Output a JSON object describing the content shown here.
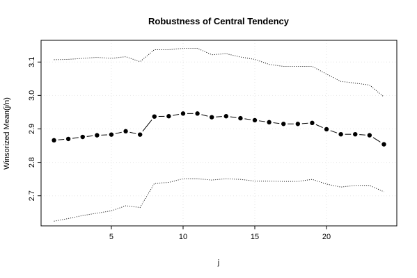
{
  "chart_data": {
    "type": "line",
    "title": "Robustness of Central Tendency",
    "xlabel": "j",
    "ylabel": "Winsorized Mean(j/n)",
    "xlim": [
      0.1,
      24.9
    ],
    "ylim": [
      2.61,
      3.165
    ],
    "x_ticks": [
      5,
      10,
      15,
      20
    ],
    "y_ticks": [
      2.7,
      2.8,
      2.9,
      3.0,
      3.1
    ],
    "x_tick_labels": [
      "5",
      "10",
      "15",
      "20"
    ],
    "y_tick_labels": [
      "2.7",
      "2.8",
      "2.9",
      "3.0",
      "3.1"
    ],
    "grid": true,
    "x": [
      1,
      2,
      3,
      4,
      5,
      6,
      7,
      8,
      9,
      10,
      11,
      12,
      13,
      14,
      15,
      16,
      17,
      18,
      19,
      20,
      21,
      22,
      23,
      24
    ],
    "series": [
      {
        "role": "mean",
        "style": "points-dashed",
        "color": "#000000",
        "values": [
          2.866,
          2.87,
          2.876,
          2.881,
          2.883,
          2.893,
          2.883,
          2.937,
          2.938,
          2.946,
          2.946,
          2.935,
          2.938,
          2.932,
          2.926,
          2.92,
          2.915,
          2.915,
          2.918,
          2.899,
          2.884,
          2.884,
          2.881,
          2.854
        ]
      },
      {
        "role": "upper",
        "style": "dotted",
        "color": "#000000",
        "values": [
          3.107,
          3.108,
          3.111,
          3.114,
          3.111,
          3.116,
          3.101,
          3.137,
          3.137,
          3.141,
          3.141,
          3.122,
          3.125,
          3.115,
          3.108,
          3.093,
          3.087,
          3.087,
          3.087,
          3.064,
          3.042,
          3.037,
          3.031,
          2.996
        ]
      },
      {
        "role": "lower",
        "style": "dotted",
        "color": "#000000",
        "values": [
          2.624,
          2.632,
          2.641,
          2.648,
          2.655,
          2.67,
          2.665,
          2.737,
          2.74,
          2.751,
          2.751,
          2.747,
          2.751,
          2.749,
          2.744,
          2.744,
          2.743,
          2.743,
          2.749,
          2.735,
          2.726,
          2.731,
          2.731,
          2.712
        ]
      }
    ]
  }
}
